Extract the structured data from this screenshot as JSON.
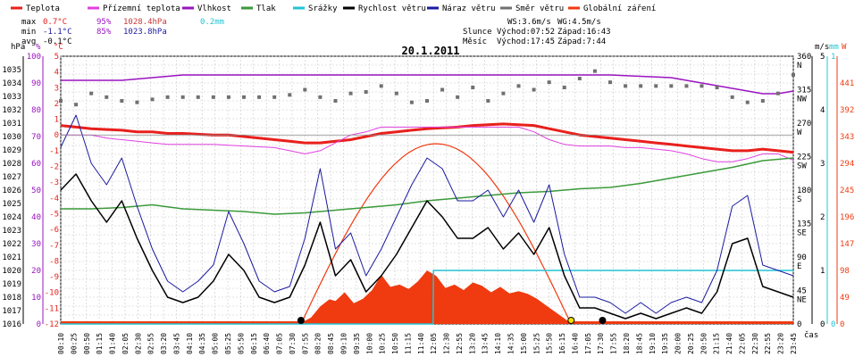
{
  "legend": [
    {
      "label": "Teplota",
      "color": "#e8201c"
    },
    {
      "label": "Přízemní teplota",
      "color": "#e040e0"
    },
    {
      "label": "Vlhkost",
      "color": "#9a14c0"
    },
    {
      "label": "Tlak",
      "color": "#3a9a3a"
    },
    {
      "label": "Srážky",
      "color": "#22c4d4"
    },
    {
      "label": "Rychlost větru",
      "color": "#000000"
    },
    {
      "label": "Náraz větru",
      "color": "#1a1aa0"
    },
    {
      "label": "Směr větru",
      "color": "#707070"
    },
    {
      "label": "Globální záření",
      "color": "#f03a10"
    }
  ],
  "stats": {
    "max": {
      "label": "max",
      "temp": "0.7°C",
      "hum": "95%",
      "pres": "1028.4hPa",
      "rain": "0.2mm"
    },
    "min": {
      "label": "min",
      "temp": "-1.1°C",
      "hum": "85%",
      "pres": "1023.8hPa"
    },
    "avg": {
      "label": "avg",
      "temp": "-0.1°C"
    },
    "ws": "WS:3.6m/s",
    "wg": "WG:4.5m/s",
    "sun": {
      "label": "Slunce",
      "rise": "Východ:07:52",
      "set": "Západ:16:43"
    },
    "moon": {
      "label": "Měsíc",
      "rise": "Východ:17:45",
      "set": "Západ:7:44"
    }
  },
  "colors": {
    "temp": "#e8201c",
    "ground": "#e040e0",
    "hum": "#9a14c0",
    "pres": "#3a9a3a",
    "rain": "#22c4d4",
    "speed": "#000000",
    "gust": "#1a1aa0",
    "dir": "#707070",
    "rad": "#f03a10",
    "grid": "#c8c8c8",
    "border": "#000000",
    "bg": "#ffffff"
  },
  "chart_data": {
    "type": "line",
    "title": "20.1.2011",
    "x_label": "čas",
    "x_ticks": [
      "00:10",
      "00:25",
      "00:50",
      "01:15",
      "01:40",
      "02:05",
      "02:30",
      "02:55",
      "03:20",
      "03:45",
      "04:10",
      "04:35",
      "05:00",
      "05:25",
      "05:50",
      "06:15",
      "06:40",
      "07:05",
      "07:30",
      "07:55",
      "08:20",
      "08:45",
      "09:10",
      "09:35",
      "10:00",
      "10:25",
      "10:50",
      "11:15",
      "11:40",
      "12:05",
      "12:30",
      "12:55",
      "13:20",
      "13:45",
      "14:10",
      "14:35",
      "15:00",
      "15:25",
      "15:50",
      "16:15",
      "16:40",
      "17:05",
      "17:30",
      "17:55",
      "18:20",
      "18:45",
      "19:10",
      "19:35",
      "20:00",
      "20:25",
      "20:50",
      "21:15",
      "21:40",
      "22:05",
      "22:30",
      "22:55",
      "23:20",
      "23:45"
    ],
    "x_range": [
      0,
      24
    ],
    "axes": {
      "hpa": {
        "unit": "hPa",
        "ticks": [
          "1016",
          "1017",
          "1018",
          "1019",
          "1020",
          "1021",
          "1022",
          "1023",
          "1024",
          "1025",
          "1026",
          "1027",
          "1028",
          "1029",
          "1030",
          "1031",
          "1032",
          "1033",
          "1034",
          "1035"
        ],
        "range": [
          1016,
          1036
        ]
      },
      "pct": {
        "unit": "%",
        "ticks": [
          "0",
          "10",
          "20",
          "30",
          "40",
          "50",
          "60",
          "70",
          "80",
          "90",
          "100"
        ],
        "range": [
          0,
          100
        ]
      },
      "c": {
        "unit": "°C",
        "ticks": [
          "-12",
          "-11",
          "-10",
          "-9",
          "-8",
          "-7",
          "-6",
          "-5",
          "-4",
          "-3",
          "-2",
          "-1",
          "0",
          "1",
          "2",
          "3",
          "4",
          "5"
        ],
        "range": [
          -12,
          5
        ]
      },
      "dir": {
        "ticks": [
          "0",
          "45",
          "90",
          "135",
          "180",
          "225",
          "270",
          "315",
          "360"
        ],
        "labels": [
          "",
          "NE",
          "E",
          "SE",
          "S",
          "SW",
          "W",
          "NW",
          "N"
        ],
        "range": [
          0,
          360
        ]
      },
      "ms": {
        "unit": "m/s",
        "ticks": [
          "0",
          "1",
          "2",
          "3",
          "4",
          "5"
        ],
        "range": [
          0,
          5
        ]
      },
      "mm": {
        "unit": "mm",
        "ticks": [
          "0",
          "1"
        ],
        "range": [
          0,
          1
        ]
      },
      "w": {
        "unit": "W",
        "ticks": [
          "0",
          "49",
          "98",
          "147",
          "196",
          "245",
          "294",
          "343",
          "392",
          "441"
        ],
        "range": [
          0,
          490
        ]
      }
    },
    "series": [
      {
        "name": "Teplota",
        "key": "temp",
        "axis": "c",
        "x": [
          0,
          0.5,
          1,
          1.5,
          2,
          2.5,
          3,
          3.5,
          4,
          4.5,
          5,
          5.5,
          6,
          6.5,
          7,
          7.5,
          8,
          8.5,
          9,
          9.5,
          10,
          10.5,
          11,
          11.5,
          12,
          12.5,
          13,
          13.5,
          14,
          14.5,
          15,
          15.5,
          16,
          16.5,
          17,
          17.5,
          18,
          18.5,
          19,
          19.5,
          20,
          20.5,
          21,
          21.5,
          22,
          22.5,
          23,
          23.5,
          24
        ],
        "y": [
          0.6,
          0.5,
          0.4,
          0.35,
          0.3,
          0.2,
          0.2,
          0.1,
          0.1,
          0.05,
          0,
          0,
          -0.1,
          -0.2,
          -0.3,
          -0.4,
          -0.5,
          -0.5,
          -0.4,
          -0.3,
          -0.1,
          0.1,
          0.2,
          0.3,
          0.4,
          0.45,
          0.5,
          0.6,
          0.65,
          0.7,
          0.65,
          0.6,
          0.4,
          0.2,
          0,
          -0.1,
          -0.2,
          -0.3,
          -0.4,
          -0.5,
          -0.6,
          -0.7,
          -0.8,
          -0.9,
          -1.0,
          -1.0,
          -0.9,
          -1.0,
          -1.1
        ]
      },
      {
        "name": "Přízemní teplota",
        "key": "ground",
        "axis": "c",
        "x": [
          0,
          1,
          1.5,
          2,
          2.5,
          3,
          3.5,
          4,
          5,
          6,
          7,
          7.5,
          8,
          8.5,
          9,
          9.5,
          10,
          10.5,
          11,
          12,
          13,
          14,
          15,
          15.5,
          16,
          16.5,
          17,
          17.5,
          18,
          18.5,
          19,
          19.5,
          20,
          20.5,
          21,
          21.5,
          22,
          22.5,
          23,
          23.5,
          24
        ],
        "y": [
          0,
          0,
          -0.2,
          -0.3,
          -0.4,
          -0.5,
          -0.6,
          -0.6,
          -0.6,
          -0.7,
          -0.8,
          -1.0,
          -1.2,
          -1.0,
          -0.5,
          0,
          0.2,
          0.5,
          0.5,
          0.5,
          0.5,
          0.5,
          0.5,
          0.2,
          -0.3,
          -0.6,
          -0.7,
          -0.7,
          -0.7,
          -0.8,
          -0.8,
          -0.9,
          -1.0,
          -1.2,
          -1.5,
          -1.7,
          -1.7,
          -1.5,
          -1.2,
          -1.2,
          -1.6
        ]
      },
      {
        "name": "Vlhkost",
        "key": "hum",
        "axis": "pct",
        "x": [
          0,
          2,
          4,
          6,
          8,
          10,
          12,
          14,
          16,
          18,
          20,
          20.5,
          21,
          21.5,
          22,
          22.5,
          23,
          23.5,
          24
        ],
        "y": [
          91,
          91,
          93,
          93,
          93,
          93,
          93,
          93,
          93,
          93,
          92,
          91,
          90,
          89,
          88,
          87,
          86,
          86,
          87
        ]
      },
      {
        "name": "Tlak",
        "key": "pres",
        "axis": "hpa",
        "x": [
          0,
          1,
          2,
          3,
          4,
          5,
          6,
          7,
          8,
          9,
          10,
          11,
          12,
          13,
          14,
          15,
          16,
          17,
          18,
          19,
          20,
          21,
          22,
          23,
          24
        ],
        "y": [
          1024.6,
          1024.6,
          1024.7,
          1024.9,
          1024.6,
          1024.5,
          1024.4,
          1024.2,
          1024.3,
          1024.5,
          1024.7,
          1024.9,
          1025.2,
          1025.4,
          1025.6,
          1025.8,
          1025.9,
          1026.1,
          1026.2,
          1026.5,
          1026.9,
          1027.3,
          1027.7,
          1028.2,
          1028.4
        ]
      },
      {
        "name": "Srážky",
        "key": "rain",
        "axis": "mm",
        "x": [
          0,
          12.2,
          12.21,
          24
        ],
        "y": [
          0,
          0,
          0.2,
          0.2
        ]
      },
      {
        "name": "Rychlost větru",
        "key": "speed",
        "axis": "ms",
        "x": [
          0,
          0.5,
          1,
          1.5,
          2,
          2.5,
          3,
          3.5,
          4,
          4.5,
          5,
          5.5,
          6,
          6.5,
          7,
          7.5,
          8,
          8.5,
          9,
          9.5,
          10,
          10.5,
          11,
          11.5,
          12,
          12.5,
          13,
          13.5,
          14,
          14.5,
          15,
          15.5,
          16,
          16.5,
          17,
          17.5,
          18,
          18.5,
          19,
          19.5,
          20,
          20.5,
          21,
          21.5,
          22,
          22.5,
          23,
          23.5,
          24
        ],
        "y": [
          2.5,
          2.8,
          2.3,
          1.9,
          2.3,
          1.6,
          1.0,
          0.5,
          0.4,
          0.5,
          0.8,
          1.3,
          1.0,
          0.5,
          0.4,
          0.5,
          1.1,
          1.9,
          0.9,
          1.2,
          0.6,
          0.9,
          1.3,
          1.8,
          2.3,
          2.0,
          1.6,
          1.6,
          1.8,
          1.4,
          1.7,
          1.3,
          1.8,
          0.9,
          0.3,
          0.3,
          0.2,
          0.1,
          0.2,
          0.1,
          0.2,
          0.3,
          0.2,
          0.6,
          1.5,
          1.6,
          0.7,
          0.6,
          0.5
        ]
      },
      {
        "name": "Náraz větru",
        "key": "gust",
        "axis": "ms",
        "x": [
          0,
          0.5,
          1,
          1.5,
          2,
          2.5,
          3,
          3.5,
          4,
          4.5,
          5,
          5.5,
          6,
          6.5,
          7,
          7.5,
          8,
          8.5,
          9,
          9.5,
          10,
          10.5,
          11,
          11.5,
          12,
          12.5,
          13,
          13.5,
          14,
          14.5,
          15,
          15.5,
          16,
          16.5,
          17,
          17.5,
          18,
          18.5,
          19,
          19.5,
          20,
          20.5,
          21,
          21.5,
          22,
          22.5,
          23,
          23.5,
          24
        ],
        "y": [
          3.3,
          3.9,
          3.0,
          2.6,
          3.1,
          2.2,
          1.4,
          0.8,
          0.6,
          0.8,
          1.1,
          2.1,
          1.5,
          0.8,
          0.6,
          0.7,
          1.6,
          2.9,
          1.4,
          1.7,
          0.9,
          1.4,
          2.0,
          2.6,
          3.1,
          2.9,
          2.3,
          2.3,
          2.5,
          2.0,
          2.5,
          1.9,
          2.6,
          1.3,
          0.5,
          0.5,
          0.4,
          0.2,
          0.4,
          0.2,
          0.4,
          0.5,
          0.4,
          1.0,
          2.2,
          2.4,
          1.1,
          1.0,
          0.9
        ]
      },
      {
        "name": "Směr větru",
        "key": "dir",
        "axis": "dir",
        "x": [
          0,
          0.5,
          1,
          1.5,
          2,
          2.5,
          3,
          3.5,
          4,
          4.5,
          5,
          5.5,
          6,
          6.5,
          7,
          7.5,
          8,
          8.5,
          9,
          9.5,
          10,
          10.5,
          11,
          11.5,
          12,
          12.5,
          13,
          13.5,
          14,
          14.5,
          15,
          15.5,
          16,
          16.5,
          17,
          17.5,
          18,
          18.5,
          19,
          19.5,
          20,
          20.5,
          21,
          21.5,
          22,
          22.5,
          23,
          23.5,
          24
        ],
        "y": [
          300,
          295,
          310,
          305,
          300,
          298,
          302,
          305,
          305,
          305,
          305,
          305,
          305,
          305,
          305,
          308,
          315,
          305,
          300,
          310,
          312,
          320,
          310,
          298,
          300,
          315,
          305,
          318,
          300,
          310,
          320,
          315,
          325,
          318,
          330,
          340,
          325,
          320,
          320,
          320,
          320,
          320,
          320,
          318,
          305,
          298,
          300,
          310,
          335
        ]
      },
      {
        "name": "Globální záření",
        "key": "rad",
        "axis": "w",
        "x": [
          7.87,
          8.2,
          8.5,
          8.8,
          9.0,
          9.3,
          9.6,
          9.9,
          10.2,
          10.5,
          10.8,
          11.1,
          11.4,
          11.7,
          12.0,
          12.3,
          12.6,
          12.9,
          13.2,
          13.5,
          13.8,
          14.1,
          14.4,
          14.7,
          15.0,
          15.3,
          15.6,
          15.9,
          16.2,
          16.5,
          16.72
        ],
        "y": [
          2,
          12,
          32,
          45,
          42,
          58,
          38,
          46,
          62,
          90,
          68,
          72,
          64,
          78,
          98,
          88,
          66,
          72,
          62,
          76,
          70,
          58,
          68,
          56,
          60,
          55,
          46,
          34,
          22,
          10,
          1
        ]
      }
    ]
  }
}
